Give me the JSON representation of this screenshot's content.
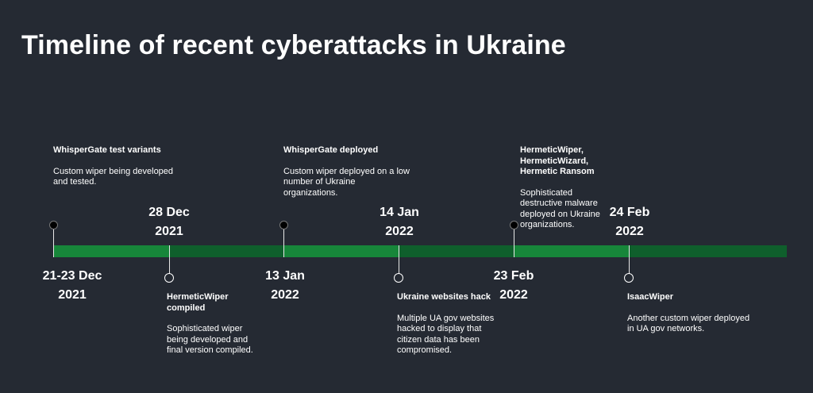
{
  "title": "Timeline of recent cyberattacks in Ukraine",
  "colors": {
    "background": "#252a33",
    "bar_light": "#17863a",
    "bar_dark": "#0f5f2c"
  },
  "dates": [
    {
      "line1": "21-23 Dec",
      "line2": "2021"
    },
    {
      "line1": "28 Dec",
      "line2": "2021"
    },
    {
      "line1": "13 Jan",
      "line2": "2022"
    },
    {
      "line1": "14 Jan",
      "line2": "2022"
    },
    {
      "line1": "23 Feb",
      "line2": "2022"
    },
    {
      "line1": "24 Feb",
      "line2": "2022"
    }
  ],
  "events": [
    {
      "title": "WhisperGate test variants",
      "desc": "Custom wiper being developed\nand tested."
    },
    {
      "title": "HermeticWiper\ncompiled",
      "desc": "Sophisticated wiper\nbeing developed and\nfinal version compiled."
    },
    {
      "title": "WhisperGate deployed",
      "desc": "Custom wiper deployed on a low\nnumber of Ukraine\norganizations."
    },
    {
      "title": "Ukraine websites hack",
      "desc": "Multiple UA gov websites\nhacked to display that\ncitizen data has been\ncompromised."
    },
    {
      "title": "HermeticWiper,\nHermeticWizard,\nHermetic Ransom",
      "desc": "Sophisticated\ndestructive malware\ndeployed on Ukraine\norganizations."
    },
    {
      "title": "IsaacWiper",
      "desc": "Another custom wiper deployed\nin UA gov networks."
    }
  ]
}
